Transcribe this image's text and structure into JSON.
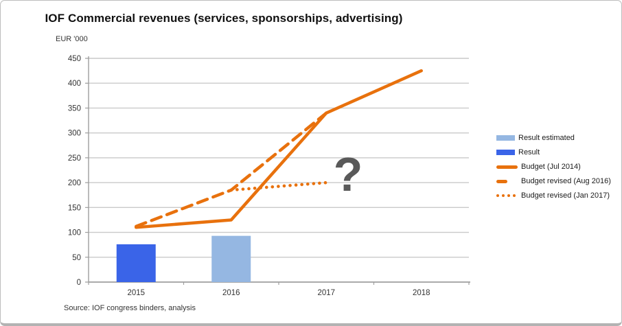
{
  "header": {
    "title": "IOF Commercial revenues (services, sponsorships, advertising)",
    "unit_label": "EUR '000"
  },
  "footer": {
    "source": "Source: IOF congress binders, analysis"
  },
  "annotation": {
    "question_mark": "?"
  },
  "colors": {
    "result": "#3a64e8",
    "result_estimated": "#95b7e2",
    "budget": "#e8710d",
    "grid": "#c9c9c9",
    "axis": "#9e9e9e",
    "tick_text": "#333333",
    "annotation": "#595959"
  },
  "legend": {
    "items": [
      {
        "label": "Result estimated",
        "swatch": "bar-light"
      },
      {
        "label": "Result",
        "swatch": "bar-dark"
      },
      {
        "label": "Budget (Jul 2014)",
        "swatch": "line-solid"
      },
      {
        "label": "Budget revised (Aug 2016)",
        "swatch": "line-dashed"
      },
      {
        "label": "Budget revised (Jan 2017)",
        "swatch": "line-dotted"
      }
    ]
  },
  "chart_data": {
    "type": "bar",
    "subtype": "combo-bar-line",
    "title": "IOF Commercial revenues (services, sponsorships, advertising)",
    "xlabel": "",
    "ylabel": "EUR '000",
    "ylim": [
      0,
      450
    ],
    "ytick_step": 50,
    "grid": true,
    "legend_position": "right",
    "categories": [
      "2015",
      "2016",
      "2017",
      "2018"
    ],
    "series": [
      {
        "name": "Result",
        "type": "bar",
        "style": "solid",
        "color_key": "result",
        "values": [
          76,
          null,
          null,
          null
        ]
      },
      {
        "name": "Result estimated",
        "type": "bar",
        "style": "solid",
        "color_key": "result_estimated",
        "values": [
          null,
          93,
          null,
          null
        ]
      },
      {
        "name": "Budget (Jul 2014)",
        "type": "line",
        "style": "solid",
        "color_key": "budget",
        "values": [
          110,
          125,
          340,
          425
        ]
      },
      {
        "name": "Budget revised (Aug 2016)",
        "type": "line",
        "style": "dashed",
        "color_key": "budget",
        "values": [
          112,
          185,
          340,
          null
        ]
      },
      {
        "name": "Budget revised (Jan 2017)",
        "type": "line",
        "style": "dotted",
        "color_key": "budget",
        "values": [
          null,
          185,
          200,
          null
        ]
      }
    ],
    "annotations": [
      {
        "text": "?",
        "x": "2017",
        "y": 220
      }
    ]
  }
}
